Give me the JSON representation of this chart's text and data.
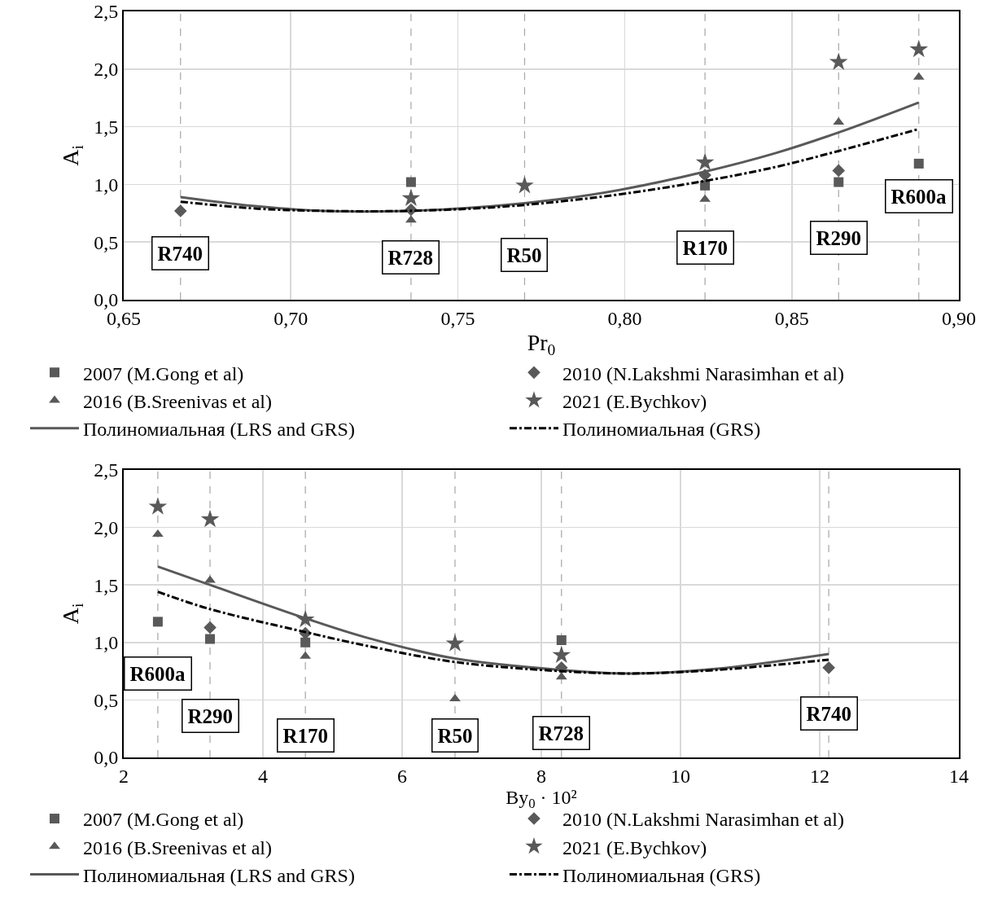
{
  "chart_data": [
    {
      "type": "scatter",
      "xlabel": "Pr$_{0}$",
      "ylabel": "A$_{i}$",
      "xlim": [
        0.65,
        0.9
      ],
      "xticks": [
        {
          "value": 0.65,
          "label": "0,65"
        },
        {
          "value": 0.7,
          "label": "0,70"
        },
        {
          "value": 0.75,
          "label": "0,75"
        },
        {
          "value": 0.8,
          "label": "0,80"
        },
        {
          "value": 0.85,
          "label": "0,85"
        },
        {
          "value": 0.9,
          "label": "0,90"
        }
      ],
      "ylim": [
        0,
        2.5
      ],
      "yticks": [
        {
          "value": 0,
          "label": "0,0"
        },
        {
          "value": 0.5,
          "label": "0,5"
        },
        {
          "value": 1,
          "label": "1,0"
        },
        {
          "value": 1.5,
          "label": "1,5"
        },
        {
          "value": 2,
          "label": "2,0"
        },
        {
          "value": 2.5,
          "label": "2,5"
        }
      ],
      "grid": true,
      "legend": "bottom",
      "series": [
        {
          "name": "2007 (M.Gong et al)",
          "type": "scatter",
          "marker": "square",
          "color": "#595959",
          "x": [
            0.736,
            0.824,
            0.864,
            0.888
          ],
          "values": [
            1.02,
            0.99,
            1.02,
            1.18
          ]
        },
        {
          "name": "2010 (N.Lakshmi Narasimhan et al)",
          "type": "scatter",
          "marker": "diamond",
          "color": "#595959",
          "x": [
            0.667,
            0.736,
            0.824,
            0.864
          ],
          "values": [
            0.77,
            0.78,
            1.08,
            1.12
          ]
        },
        {
          "name": "2016 (B.Sreenivas et al)",
          "type": "scatter",
          "marker": "triangle",
          "color": "#595959",
          "x": [
            0.736,
            0.824,
            0.864,
            0.888
          ],
          "values": [
            0.69,
            0.87,
            1.54,
            1.93
          ]
        },
        {
          "name": "2021 (E.Bychkov)",
          "type": "scatter",
          "marker": "star",
          "color": "#595959",
          "x": [
            0.736,
            0.77,
            0.824,
            0.864,
            0.888
          ],
          "values": [
            0.88,
            0.99,
            1.19,
            2.06,
            2.17
          ]
        },
        {
          "name": "Полиномиальная (LRS and GRS)",
          "type": "line",
          "line_style": "solid",
          "color": "#595959",
          "x": [
            0.667,
            0.69,
            0.71,
            0.735,
            0.76,
            0.78,
            0.8,
            0.824,
            0.845,
            0.864,
            0.888
          ],
          "values": [
            0.89,
            0.81,
            0.77,
            0.77,
            0.81,
            0.87,
            0.96,
            1.11,
            1.27,
            1.45,
            1.71
          ]
        },
        {
          "name": "Полиномиальная (GRS)",
          "type": "line",
          "line_style": "dashdot",
          "color": "#000000",
          "x": [
            0.667,
            0.69,
            0.71,
            0.735,
            0.76,
            0.78,
            0.8,
            0.824,
            0.845,
            0.864,
            0.888
          ],
          "values": [
            0.85,
            0.79,
            0.77,
            0.77,
            0.8,
            0.85,
            0.92,
            1.03,
            1.15,
            1.29,
            1.48
          ]
        }
      ],
      "ref_lines": [
        {
          "axis": "x",
          "value": 0.667,
          "color": "#a6a6a6",
          "line_style": "dashed"
        },
        {
          "axis": "x",
          "value": 0.736,
          "color": "#a6a6a6",
          "line_style": "dashed"
        },
        {
          "axis": "x",
          "value": 0.77,
          "color": "#a6a6a6",
          "line_style": "dashed"
        },
        {
          "axis": "x",
          "value": 0.824,
          "color": "#a6a6a6",
          "line_style": "dashed"
        },
        {
          "axis": "x",
          "value": 0.864,
          "color": "#a6a6a6",
          "line_style": "dashed"
        },
        {
          "axis": "x",
          "value": 0.888,
          "color": "#a6a6a6",
          "line_style": "dashed"
        }
      ],
      "annotations": [
        {
          "text": "R740",
          "x": 0.667,
          "y": 0.4
        },
        {
          "text": "R728",
          "x": 0.736,
          "y": 0.37
        },
        {
          "text": "R50",
          "x": 0.77,
          "y": 0.39
        },
        {
          "text": "R170",
          "x": 0.824,
          "y": 0.45
        },
        {
          "text": "R290",
          "x": 0.864,
          "y": 0.54
        },
        {
          "text": "R600a",
          "x": 0.888,
          "y": 0.9
        }
      ]
    },
    {
      "type": "scatter",
      "xlabel": "By$_{0}$ · 10²",
      "ylabel": "A$_{i}$",
      "xlim": [
        2,
        14
      ],
      "xticks": [
        2,
        4,
        6,
        8,
        10,
        12,
        14
      ],
      "ylim": [
        0,
        2.5
      ],
      "yticks": [
        {
          "value": 0,
          "label": "0,0"
        },
        {
          "value": 0.5,
          "label": "0,5"
        },
        {
          "value": 1,
          "label": "1,0"
        },
        {
          "value": 1.5,
          "label": "1,5"
        },
        {
          "value": 2,
          "label": "2,0"
        },
        {
          "value": 2.5,
          "label": "2,5"
        }
      ],
      "grid": true,
      "legend": "bottom",
      "series": [
        {
          "name": "2007 (M.Gong et al)",
          "type": "scatter",
          "marker": "square",
          "color": "#595959",
          "x": [
            2.49,
            3.24,
            4.61,
            8.29
          ],
          "values": [
            1.18,
            1.03,
            1.0,
            1.02
          ]
        },
        {
          "name": "2010 (N.Lakshmi Narasimhan et al)",
          "type": "scatter",
          "marker": "diamond",
          "color": "#595959",
          "x": [
            3.24,
            4.61,
            8.29,
            12.13
          ],
          "values": [
            1.13,
            1.08,
            0.78,
            0.78
          ]
        },
        {
          "name": "2016 (B.Sreenivas et al)",
          "type": "scatter",
          "marker": "triangle",
          "color": "#595959",
          "x": [
            2.49,
            3.24,
            4.61,
            6.76,
            8.29
          ],
          "values": [
            1.94,
            1.54,
            0.88,
            0.51,
            0.7
          ]
        },
        {
          "name": "2021 (E.Bychkov)",
          "type": "scatter",
          "marker": "star",
          "color": "#595959",
          "x": [
            2.49,
            3.24,
            4.61,
            6.76,
            8.29
          ],
          "values": [
            2.18,
            2.07,
            1.2,
            0.99,
            0.89
          ]
        },
        {
          "name": "Полиномиальная (LRS and GRS)",
          "type": "line",
          "line_style": "solid",
          "color": "#595959",
          "x": [
            2.49,
            3.24,
            4.61,
            5.5,
            6.76,
            8.29,
            9.3,
            10.5,
            12.13
          ],
          "values": [
            1.66,
            1.5,
            1.21,
            1.04,
            0.86,
            0.76,
            0.73,
            0.77,
            0.9
          ]
        },
        {
          "name": "Полиномиальная (GRS)",
          "type": "line",
          "line_style": "dashdot",
          "color": "#000000",
          "x": [
            2.49,
            3.24,
            4.61,
            5.5,
            6.76,
            8.29,
            9.3,
            10.5,
            12.13
          ],
          "values": [
            1.44,
            1.29,
            1.09,
            0.97,
            0.83,
            0.75,
            0.73,
            0.76,
            0.85
          ]
        }
      ],
      "ref_lines": [
        {
          "axis": "x",
          "value": 2.49,
          "color": "#a6a6a6",
          "line_style": "dashed"
        },
        {
          "axis": "x",
          "value": 3.24,
          "color": "#a6a6a6",
          "line_style": "dashed"
        },
        {
          "axis": "x",
          "value": 4.61,
          "color": "#a6a6a6",
          "line_style": "dashed"
        },
        {
          "axis": "x",
          "value": 6.76,
          "color": "#a6a6a6",
          "line_style": "dashed"
        },
        {
          "axis": "x",
          "value": 8.29,
          "color": "#a6a6a6",
          "line_style": "dashed"
        },
        {
          "axis": "x",
          "value": 12.13,
          "color": "#a6a6a6",
          "line_style": "dashed"
        }
      ],
      "annotations": [
        {
          "text": "R600a",
          "x": 2.49,
          "y": 0.73
        },
        {
          "text": "R290",
          "x": 3.24,
          "y": 0.36
        },
        {
          "text": "R170",
          "x": 4.61,
          "y": 0.19
        },
        {
          "text": "R50",
          "x": 6.76,
          "y": 0.19
        },
        {
          "text": "R728",
          "x": 8.29,
          "y": 0.21
        },
        {
          "text": "R740",
          "x": 12.13,
          "y": 0.38
        }
      ]
    }
  ]
}
